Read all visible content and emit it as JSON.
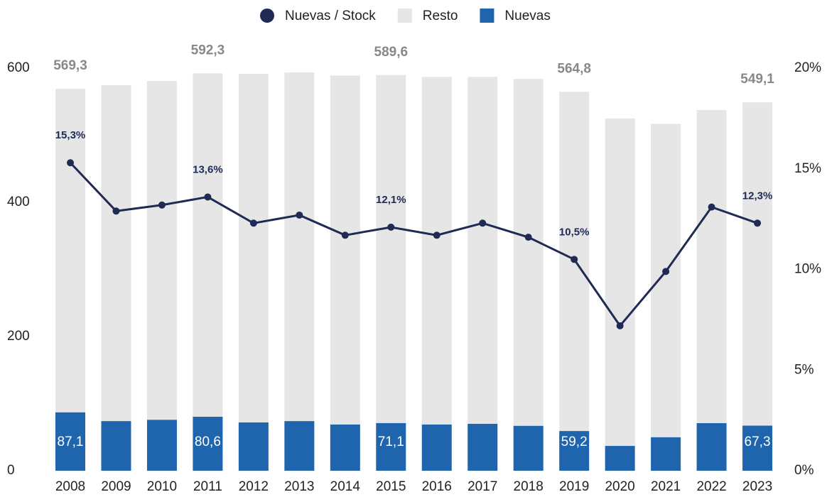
{
  "chart_data": {
    "type": "bar",
    "categories": [
      "2008",
      "2009",
      "2010",
      "2011",
      "2012",
      "2013",
      "2014",
      "2015",
      "2016",
      "2017",
      "2018",
      "2019",
      "2020",
      "2021",
      "2022",
      "2023"
    ],
    "series": [
      {
        "name": "Nuevas / Stock",
        "type": "line",
        "axis": "y2",
        "color": "#1f2a55",
        "values": [
          15.3,
          12.9,
          13.2,
          13.6,
          12.3,
          12.7,
          11.7,
          12.1,
          11.7,
          12.3,
          11.6,
          10.5,
          7.2,
          9.9,
          13.1,
          12.3
        ],
        "value_labels": [
          "15,3%",
          null,
          null,
          "13,6%",
          null,
          null,
          null,
          "12,1%",
          null,
          null,
          null,
          "10,5%",
          null,
          null,
          null,
          "12,3%"
        ]
      },
      {
        "name": "Resto",
        "type": "bar",
        "color": "#e6e6e6",
        "values": [
          482.2,
          500.6,
          505,
          511.7,
          519.5,
          519.6,
          520,
          518.5,
          518,
          517,
          517,
          505.6,
          488,
          467,
          466.6,
          481.8
        ]
      },
      {
        "name": "Nuevas",
        "type": "bar",
        "color": "#1f65ad",
        "values": [
          87.1,
          74,
          76,
          80.6,
          72,
          74,
          69,
          71.1,
          69,
          70,
          67,
          59.2,
          37,
          50,
          71,
          67.3
        ],
        "value_labels": [
          "87,1",
          null,
          null,
          "80,6",
          null,
          null,
          null,
          "71,1",
          null,
          null,
          null,
          "59,2",
          null,
          null,
          null,
          "67,3"
        ]
      }
    ],
    "total_labels": [
      "569,3",
      null,
      null,
      "592,3",
      null,
      null,
      null,
      "589,6",
      null,
      null,
      null,
      "564,8",
      null,
      null,
      null,
      "549,1"
    ],
    "ylim": [
      0,
      600
    ],
    "yticks": [
      0,
      200,
      400,
      600
    ],
    "y2lim": [
      0,
      20
    ],
    "y2ticks": [
      {
        "value": 0,
        "label": "0%"
      },
      {
        "value": 5,
        "label": "5%"
      },
      {
        "value": 10,
        "label": "10%"
      },
      {
        "value": 15,
        "label": "15%"
      },
      {
        "value": 20,
        "label": "20%"
      }
    ]
  }
}
